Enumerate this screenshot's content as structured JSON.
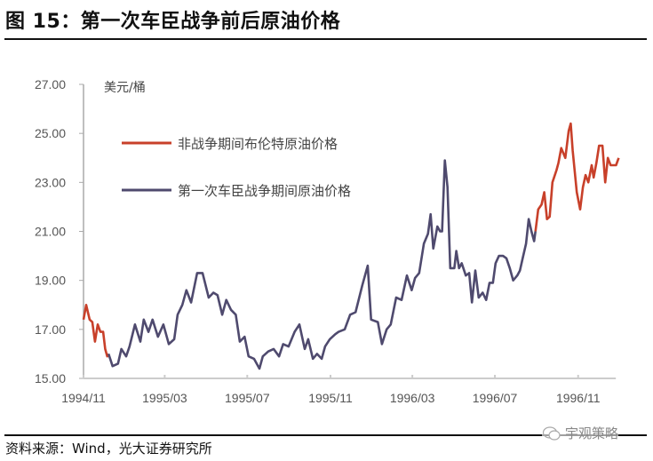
{
  "title": "图 15：第一次车臣战争前后原油价格",
  "source": "资料来源：Wind，光大证券研究所",
  "watermark": {
    "text": "宇观策略",
    "icon": "wechat-icon"
  },
  "chart_data": {
    "type": "line",
    "title": "",
    "ylabel": "美元/桶",
    "xlabel": "",
    "ylim": [
      15,
      27
    ],
    "xlim": [
      "1994-11-01",
      "1997-01-01"
    ],
    "y_ticks": [
      "15.00",
      "17.00",
      "19.00",
      "21.00",
      "23.00",
      "25.00",
      "27.00"
    ],
    "x_ticks": [
      {
        "label": "1994/11",
        "date": "1994-11-01"
      },
      {
        "label": "1995/03",
        "date": "1995-03-01"
      },
      {
        "label": "1995/07",
        "date": "1995-07-01"
      },
      {
        "label": "1995/11",
        "date": "1995-11-01"
      },
      {
        "label": "1996/03",
        "date": "1996-03-01"
      },
      {
        "label": "1996/07",
        "date": "1996-07-01"
      },
      {
        "label": "1996/11",
        "date": "1996-11-01"
      }
    ],
    "grid": false,
    "legend_placement": "top-left",
    "series": [
      {
        "name": "非战争期间布伦特原油价格",
        "color": "#C8402A",
        "segments": [
          [
            [
              "1994-11-01",
              17.4
            ],
            [
              "1994-11-05",
              18.0
            ],
            [
              "1994-11-10",
              17.4
            ],
            [
              "1994-11-14",
              17.3
            ],
            [
              "1994-11-18",
              16.5
            ],
            [
              "1994-11-22",
              17.2
            ],
            [
              "1994-11-26",
              16.9
            ],
            [
              "1994-11-30",
              16.9
            ],
            [
              "1994-12-03",
              16.2
            ],
            [
              "1994-12-06",
              15.9
            ],
            [
              "1994-12-08",
              16.0
            ]
          ],
          [
            [
              "1996-08-30",
              21.0
            ],
            [
              "1996-09-03",
              21.9
            ],
            [
              "1996-09-08",
              22.1
            ],
            [
              "1996-09-12",
              22.6
            ],
            [
              "1996-09-16",
              21.5
            ],
            [
              "1996-09-20",
              21.6
            ],
            [
              "1996-09-24",
              23.0
            ],
            [
              "1996-09-30",
              23.5
            ],
            [
              "1996-10-03",
              23.8
            ],
            [
              "1996-10-07",
              24.4
            ],
            [
              "1996-10-13",
              24.0
            ],
            [
              "1996-10-18",
              25.1
            ],
            [
              "1996-10-21",
              25.4
            ],
            [
              "1996-10-24",
              24.3
            ],
            [
              "1996-10-30",
              22.6
            ],
            [
              "1996-11-04",
              21.9
            ],
            [
              "1996-11-08",
              22.8
            ],
            [
              "1996-11-12",
              23.3
            ],
            [
              "1996-11-16",
              23.0
            ],
            [
              "1996-11-21",
              23.7
            ],
            [
              "1996-11-24",
              23.2
            ],
            [
              "1996-11-28",
              23.8
            ],
            [
              "1996-12-02",
              24.5
            ],
            [
              "1996-12-07",
              24.5
            ],
            [
              "1996-12-11",
              23.0
            ],
            [
              "1996-12-15",
              24.0
            ],
            [
              "1996-12-19",
              23.7
            ],
            [
              "1996-12-23",
              23.7
            ],
            [
              "1996-12-27",
              23.7
            ],
            [
              "1996-12-31",
              24.0
            ]
          ]
        ]
      },
      {
        "name": "第一次车臣战争期间原油价格",
        "color": "#4F4A6E",
        "segments": [
          [
            [
              "1994-12-08",
              16.0
            ],
            [
              "1994-12-14",
              15.5
            ],
            [
              "1994-12-22",
              15.6
            ],
            [
              "1994-12-27",
              16.2
            ],
            [
              "1995-01-03",
              15.9
            ],
            [
              "1995-01-08",
              16.3
            ],
            [
              "1995-01-16",
              17.2
            ],
            [
              "1995-01-24",
              16.5
            ],
            [
              "1995-01-29",
              17.4
            ],
            [
              "1995-02-05",
              16.9
            ],
            [
              "1995-02-11",
              17.4
            ],
            [
              "1995-02-19",
              16.7
            ],
            [
              "1995-02-27",
              17.2
            ],
            [
              "1995-03-07",
              16.4
            ],
            [
              "1995-03-15",
              16.6
            ],
            [
              "1995-03-20",
              17.6
            ],
            [
              "1995-03-27",
              18.0
            ],
            [
              "1995-04-02",
              18.6
            ],
            [
              "1995-04-09",
              18.1
            ],
            [
              "1995-04-18",
              19.3
            ],
            [
              "1995-04-26",
              19.3
            ],
            [
              "1995-05-05",
              18.3
            ],
            [
              "1995-05-12",
              18.5
            ],
            [
              "1995-05-18",
              18.4
            ],
            [
              "1995-05-25",
              17.6
            ],
            [
              "1995-05-31",
              18.2
            ],
            [
              "1995-06-07",
              17.8
            ],
            [
              "1995-06-14",
              17.6
            ],
            [
              "1995-06-20",
              16.5
            ],
            [
              "1995-06-27",
              16.7
            ],
            [
              "1995-07-03",
              15.9
            ],
            [
              "1995-07-11",
              15.8
            ],
            [
              "1995-07-19",
              15.4
            ],
            [
              "1995-07-24",
              15.9
            ],
            [
              "1995-08-01",
              16.1
            ],
            [
              "1995-08-09",
              16.2
            ],
            [
              "1995-08-17",
              15.9
            ],
            [
              "1995-08-23",
              16.4
            ],
            [
              "1995-08-31",
              16.3
            ],
            [
              "1995-09-09",
              16.9
            ],
            [
              "1995-09-16",
              17.2
            ],
            [
              "1995-09-24",
              16.2
            ],
            [
              "1995-09-29",
              16.6
            ],
            [
              "1995-10-06",
              15.8
            ],
            [
              "1995-10-12",
              16.0
            ],
            [
              "1995-10-19",
              15.8
            ],
            [
              "1995-10-24",
              16.3
            ],
            [
              "1995-10-31",
              16.6
            ],
            [
              "1995-11-08",
              16.8
            ],
            [
              "1995-11-13",
              16.9
            ],
            [
              "1995-11-22",
              17.0
            ],
            [
              "1995-11-30",
              17.6
            ],
            [
              "1995-12-08",
              17.7
            ],
            [
              "1995-12-18",
              18.8
            ],
            [
              "1995-12-26",
              19.6
            ],
            [
              "1995-12-31",
              17.4
            ],
            [
              "1996-01-10",
              17.3
            ],
            [
              "1996-01-16",
              16.4
            ],
            [
              "1996-01-23",
              17.0
            ],
            [
              "1996-01-29",
              17.2
            ],
            [
              "1996-02-06",
              18.3
            ],
            [
              "1996-02-14",
              18.2
            ],
            [
              "1996-02-22",
              19.2
            ],
            [
              "1996-02-29",
              18.6
            ],
            [
              "1996-03-05",
              19.1
            ],
            [
              "1996-03-11",
              19.3
            ],
            [
              "1996-03-18",
              20.5
            ],
            [
              "1996-03-24",
              20.9
            ],
            [
              "1996-03-28",
              21.7
            ],
            [
              "1996-04-01",
              20.3
            ],
            [
              "1996-04-07",
              21.2
            ],
            [
              "1996-04-11",
              21.0
            ],
            [
              "1996-04-14",
              21.0
            ],
            [
              "1996-04-18",
              23.9
            ],
            [
              "1996-04-22",
              22.8
            ],
            [
              "1996-04-26",
              19.5
            ],
            [
              "1996-05-02",
              19.5
            ],
            [
              "1996-05-05",
              20.2
            ],
            [
              "1996-05-09",
              19.5
            ],
            [
              "1996-05-13",
              19.7
            ],
            [
              "1996-05-19",
              19.2
            ],
            [
              "1996-05-24",
              19.3
            ],
            [
              "1996-05-28",
              18.1
            ],
            [
              "1996-06-02",
              19.4
            ],
            [
              "1996-06-07",
              18.3
            ],
            [
              "1996-06-13",
              18.5
            ],
            [
              "1996-06-18",
              18.2
            ],
            [
              "1996-06-23",
              18.9
            ],
            [
              "1996-06-28",
              18.9
            ],
            [
              "1996-07-02",
              19.7
            ],
            [
              "1996-07-07",
              20.0
            ],
            [
              "1996-07-13",
              20.0
            ],
            [
              "1996-07-18",
              19.9
            ],
            [
              "1996-07-23",
              19.5
            ],
            [
              "1996-07-28",
              19.0
            ],
            [
              "1996-08-03",
              19.2
            ],
            [
              "1996-08-07",
              19.4
            ],
            [
              "1996-08-11",
              19.9
            ],
            [
              "1996-08-16",
              20.5
            ],
            [
              "1996-08-20",
              21.5
            ],
            [
              "1996-08-24",
              21.0
            ],
            [
              "1996-08-28",
              20.6
            ],
            [
              "1996-08-30",
              21.0
            ]
          ]
        ]
      }
    ]
  }
}
